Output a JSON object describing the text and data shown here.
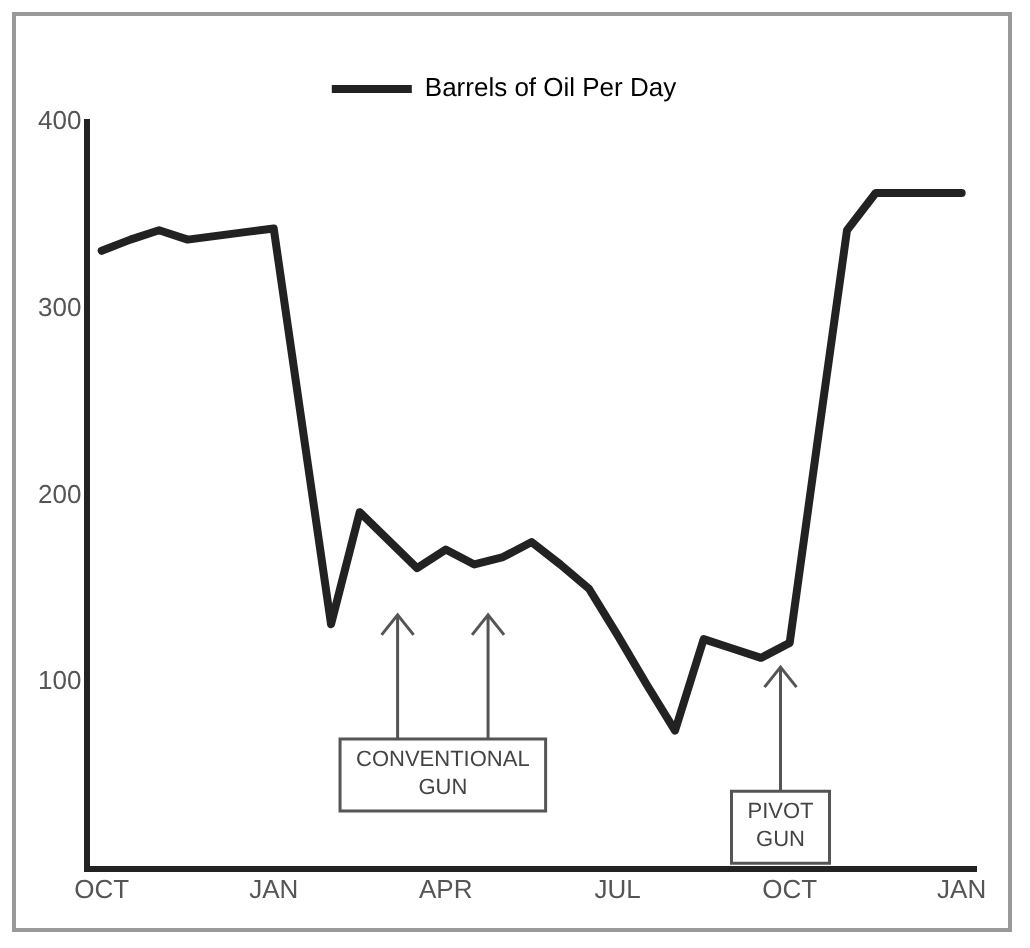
{
  "chart_data": {
    "type": "line",
    "categories": [
      "OCT",
      null,
      null,
      null,
      null,
      null,
      "JAN",
      null,
      null,
      null,
      null,
      null,
      "APR",
      null,
      null,
      null,
      null,
      null,
      "JUL",
      null,
      null,
      null,
      null,
      null,
      "OCT",
      null,
      null,
      null,
      null,
      null,
      "JAN"
    ],
    "series": [
      {
        "name": "Barrels of Oil Per Day",
        "color": "#222222",
        "values": [
          331,
          337,
          342,
          337,
          339,
          341,
          343,
          237,
          131,
          191,
          176,
          161,
          171,
          163,
          167,
          175,
          163,
          150,
          125,
          99,
          74,
          123,
          118,
          113,
          121,
          232,
          342,
          362,
          362,
          362,
          362
        ]
      }
    ],
    "ylim": [
      0,
      400
    ],
    "yticks": [
      100,
      200,
      300,
      400
    ],
    "annotations": [
      "CONVENTIONAL GUN",
      "PIVOT GUN"
    ],
    "legend": "top",
    "grid": false,
    "marker": "none",
    "line_style": "solid"
  }
}
